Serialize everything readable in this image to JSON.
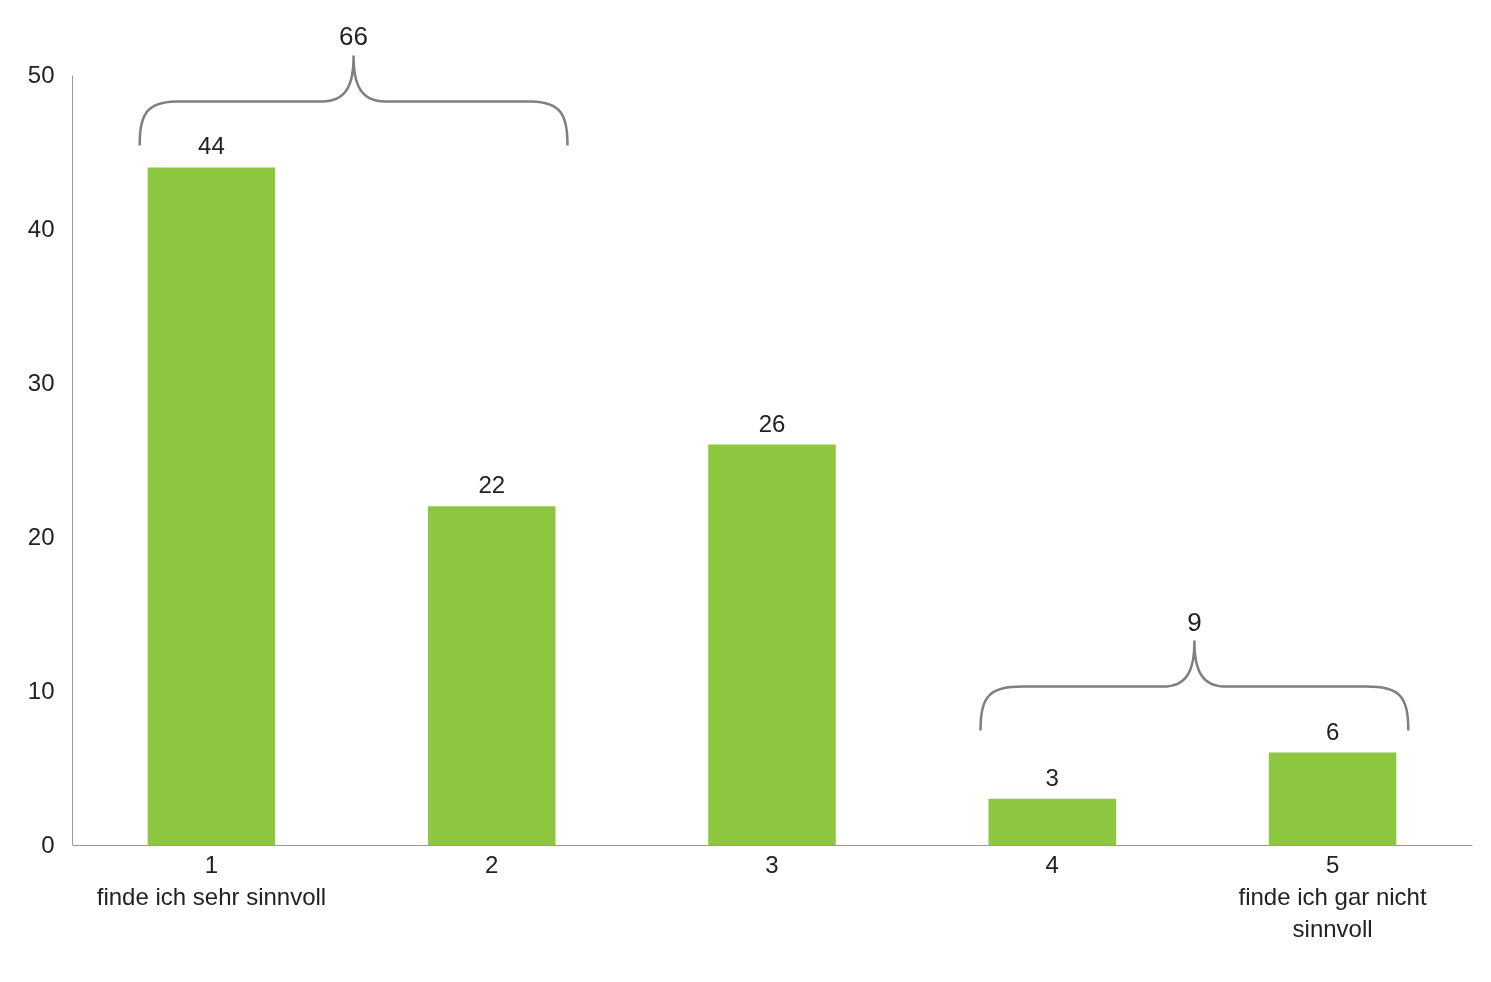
{
  "chart_data": {
    "type": "bar",
    "categories": [
      "1\nfinde ich sehr sinnvoll",
      "2",
      "3",
      "4",
      "5\nfinde ich gar nicht\nsinnvoll"
    ],
    "values": [
      44,
      22,
      26,
      3,
      6
    ],
    "color": "#8dc63f",
    "ylim": [
      0,
      50
    ],
    "yticks": [
      0,
      10,
      20,
      30,
      40,
      50
    ],
    "grid": false,
    "data_labels": true,
    "annotations": [
      "66",
      "9"
    ]
  }
}
